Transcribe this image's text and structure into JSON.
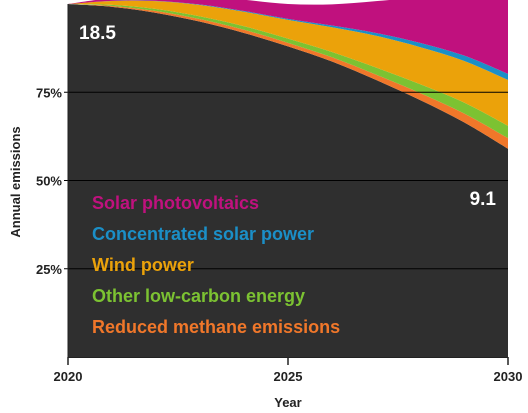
{
  "chart_data": {
    "type": "area",
    "xlabel": "Year",
    "ylabel": "Annual emissions",
    "x": [
      2020,
      2021,
      2022,
      2023,
      2024,
      2025,
      2026,
      2027,
      2028,
      2029,
      2030
    ],
    "x_ticks": [
      "2020",
      "2025",
      "2030"
    ],
    "y_ticks": [
      {
        "value": 75,
        "label": "75%"
      },
      {
        "value": 50,
        "label": "50%"
      },
      {
        "value": 25,
        "label": "25%"
      }
    ],
    "ylim": [
      0,
      100
    ],
    "grid": true,
    "baseline": {
      "name": "Annual emissions",
      "values": [
        100,
        99.2,
        97.5,
        95,
        91.8,
        88,
        83.7,
        78.5,
        72.8,
        66.5,
        59
      ]
    },
    "series": [
      {
        "name": "Solar photovoltaics",
        "color": "#c0117e",
        "values": [
          0,
          0.8,
          1.6,
          2.3,
          3.2,
          4.2,
          6,
          9,
          13,
          18,
          24
        ]
      },
      {
        "name": "Concentrated solar power",
        "color": "#1b8fc7",
        "values": [
          0,
          0.05,
          0.1,
          0.15,
          0.2,
          0.3,
          0.5,
          0.8,
          1.2,
          1.5,
          1.7
        ]
      },
      {
        "name": "Wind power",
        "color": "#eba20a",
        "values": [
          0,
          1.1,
          2.2,
          3.2,
          4.1,
          5.3,
          7,
          9,
          10.5,
          11.8,
          13
        ]
      },
      {
        "name": "Other low-carbon energy",
        "color": "#7cc232",
        "values": [
          0,
          0.3,
          0.6,
          0.8,
          1.0,
          1.2,
          1.5,
          2.0,
          2.5,
          3.1,
          3.5
        ]
      },
      {
        "name": "Reduced methane emissions",
        "color": "#f0772a",
        "values": [
          0,
          0.25,
          0.5,
          0.7,
          0.9,
          1.0,
          1.2,
          1.5,
          2.0,
          2.5,
          3.0
        ]
      }
    ],
    "annotations": [
      {
        "text": "18.5",
        "x": 2020,
        "y": 100
      },
      {
        "text": "9.1",
        "x": 2030,
        "y": 49
      }
    ],
    "legend_position": "inside-bottom-left"
  }
}
